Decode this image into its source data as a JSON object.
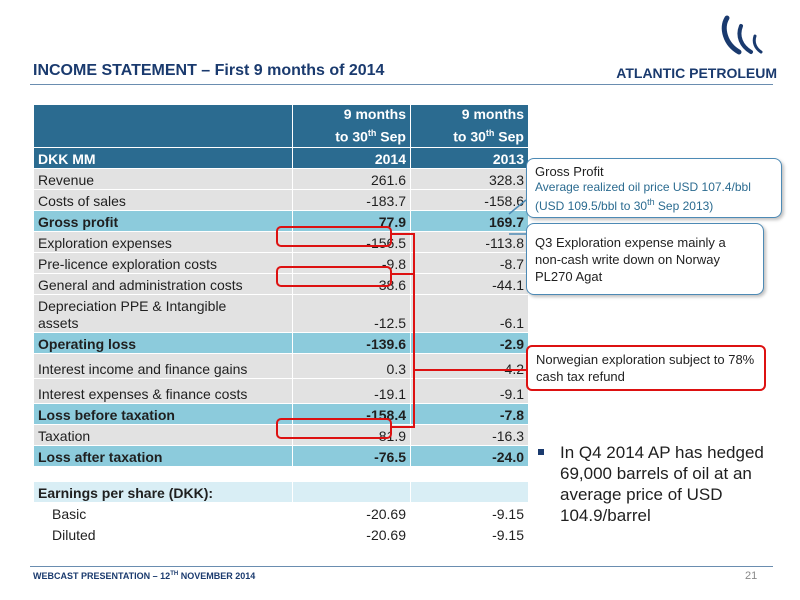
{
  "title": "INCOME STATEMENT – First 9 months of 2014",
  "logo": {
    "text": "ATLANTIC PETROLEUM"
  },
  "table": {
    "col1_line1": "9 months",
    "col1_line2": "to 30",
    "col1_sup": "th",
    "col1_line2b": " Sep",
    "col2_line1": "9 months",
    "col2_line2": "to 30",
    "col2_sup": "th",
    "col2_line2b": " Sep",
    "unit": "DKK MM",
    "year1": "2014",
    "year2": "2013",
    "rows": [
      {
        "label": "Revenue",
        "v1": "261.6",
        "v2": "328.3"
      },
      {
        "label": "Costs of sales",
        "v1": "-183.7",
        "v2": "-158.6"
      },
      {
        "label": "Gross profit",
        "v1": "77.9",
        "v2": "169.7"
      },
      {
        "label": "Exploration expenses",
        "v1": "-156.5",
        "v2": "-113.8"
      },
      {
        "label": "Pre-licence exploration costs",
        "v1": "-9.8",
        "v2": "-8.7"
      },
      {
        "label": "General and administration costs",
        "v1": "-38.6",
        "v2": "-44.1"
      },
      {
        "label_line1": "Depreciation PPE & Intangible",
        "label_line2": "assets",
        "v1": "-12.5",
        "v2": "-6.1"
      },
      {
        "label": "Operating loss",
        "v1": "-139.6",
        "v2": "-2.9"
      },
      {
        "label": "Interest income and finance gains",
        "v1": "0.3",
        "v2": "4.2"
      },
      {
        "label": "Interest expenses & finance costs",
        "v1": "-19.1",
        "v2": "-9.1"
      },
      {
        "label": "Loss before taxation",
        "v1": "-158.4",
        "v2": "-7.8"
      },
      {
        "label": "Taxation",
        "v1": "81.9",
        "v2": "-16.3"
      },
      {
        "label": "Loss after taxation",
        "v1": "-76.5",
        "v2": "-24.0"
      }
    ],
    "eps_header": "Earnings per share (DKK):",
    "eps": [
      {
        "label": "Basic",
        "v1": "-20.69",
        "v2": "-9.15"
      },
      {
        "label": "Diluted",
        "v1": "-20.69",
        "v2": "-9.15"
      }
    ]
  },
  "callouts": {
    "gross_title": "Gross Profit",
    "gross_sub1": "Average realized oil price USD 107.4/bbl",
    "gross_sub2a": "(USD 109.5/bbl to 30",
    "gross_sub2_sup": "th",
    "gross_sub2b": " Sep 2013)",
    "q3": "Q3 Exploration expense mainly a non-cash write down on Norway PL270 Agat",
    "norway": "Norwegian exploration subject to 78% cash tax refund"
  },
  "bullet": "In Q4 2014 AP has hedged 69,000 barrels of oil at an average price of USD 104.9/barrel",
  "footer": {
    "text_a": "WEBCAST PRESENTATION – 12",
    "text_sup": "TH",
    "text_b": " NOVEMBER 2014",
    "page": "21"
  },
  "colors": {
    "header": "#2b6b90",
    "bold_row": "#8ccbdc",
    "plain_row": "#e2e2e2",
    "highlight": "#dd1111",
    "title": "#1a3a6e"
  }
}
